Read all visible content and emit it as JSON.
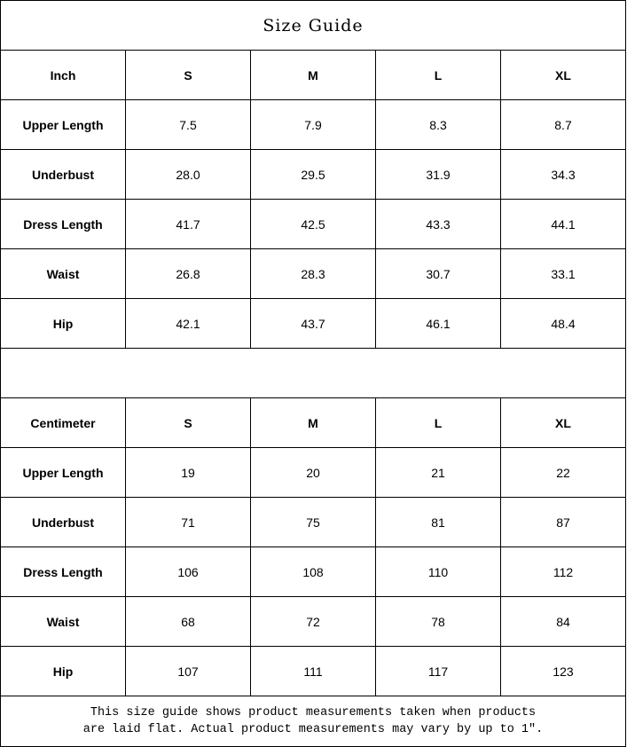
{
  "title": "Size Guide",
  "sizes": [
    "S",
    "M",
    "L",
    "XL"
  ],
  "inch": {
    "unit_label": "Inch",
    "rows": [
      {
        "label": "Upper Length",
        "values": [
          "7.5",
          "7.9",
          "8.3",
          "8.7"
        ]
      },
      {
        "label": "Underbust",
        "values": [
          "28.0",
          "29.5",
          "31.9",
          "34.3"
        ]
      },
      {
        "label": "Dress Length",
        "values": [
          "41.7",
          "42.5",
          "43.3",
          "44.1"
        ]
      },
      {
        "label": "Waist",
        "values": [
          "26.8",
          "28.3",
          "30.7",
          "33.1"
        ]
      },
      {
        "label": "Hip",
        "values": [
          "42.1",
          "43.7",
          "46.1",
          "48.4"
        ]
      }
    ]
  },
  "cm": {
    "unit_label": "Centimeter",
    "rows": [
      {
        "label": "Upper Length",
        "values": [
          "19",
          "20",
          "21",
          "22"
        ]
      },
      {
        "label": "Underbust",
        "values": [
          "71",
          "75",
          "81",
          "87"
        ]
      },
      {
        "label": "Dress Length",
        "values": [
          "106",
          "108",
          "110",
          "112"
        ]
      },
      {
        "label": "Waist",
        "values": [
          "68",
          "72",
          "78",
          "84"
        ]
      },
      {
        "label": "Hip",
        "values": [
          "107",
          "111",
          "117",
          "123"
        ]
      }
    ]
  },
  "footer": {
    "line1": "This size guide shows product measurements taken when products",
    "line2": "are laid flat. Actual product measurements may vary by up to 1″."
  }
}
